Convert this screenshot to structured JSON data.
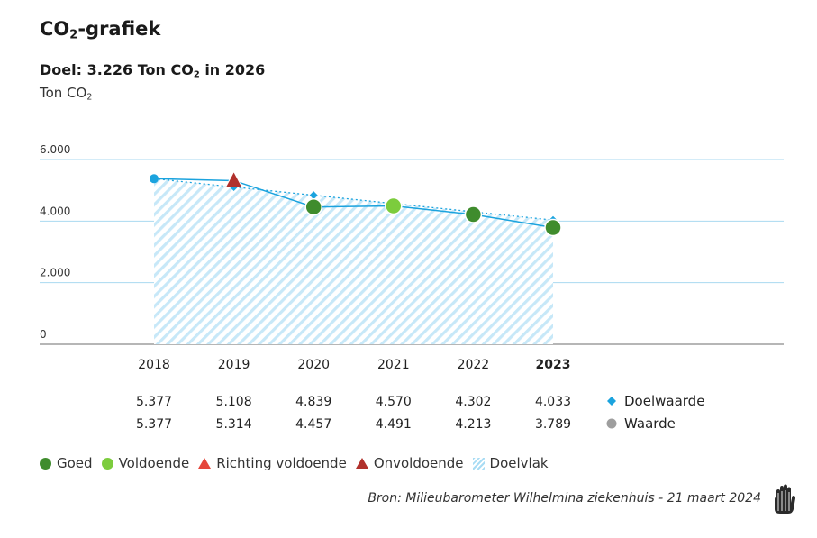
{
  "header": {
    "title_pre": "CO",
    "title_sub": "2",
    "title_post": "-grafiek",
    "goal_pre": "Doel: 3.226 Ton CO",
    "goal_sub": "2",
    "goal_post": " in 2026",
    "unit_pre": "Ton CO",
    "unit_sub": "2"
  },
  "chart_data": {
    "type": "line",
    "categories": [
      "2018",
      "2019",
      "2020",
      "2021",
      "2022",
      "2023"
    ],
    "highlight_category": "2023",
    "ylim": [
      0,
      6000
    ],
    "yticks": [
      0,
      2000,
      4000,
      6000
    ],
    "ytick_labels": [
      "0",
      "2.000",
      "4.000",
      "6.000"
    ],
    "series": [
      {
        "name": "Doelwaarde",
        "values": [
          5377,
          5108,
          4839,
          4570,
          4302,
          4033
        ],
        "labels": [
          "5.377",
          "5.108",
          "4.839",
          "4.570",
          "4.302",
          "4.033"
        ],
        "color": "#1ba3de",
        "style": "dotted",
        "marker": "diamond"
      },
      {
        "name": "Waarde",
        "values": [
          5377,
          5314,
          4457,
          4491,
          4213,
          3789
        ],
        "labels": [
          "5.377",
          "5.314",
          "4.457",
          "4.491",
          "4.213",
          "3.789"
        ],
        "color": "#1ba3de",
        "legend_color": "#9e9e9e",
        "style": "solid",
        "status": [
          null,
          "Onvoldoende",
          "Goed",
          "Voldoende",
          "Goed",
          "Goed"
        ]
      }
    ],
    "area": "Doelvlak",
    "status_colors": {
      "Goed": "#3f8c2d",
      "Voldoende": "#7ccc3d",
      "Richting voldoende": "#e5463b",
      "Onvoldoende": "#b1312c"
    },
    "area_color": "#a9dcf4",
    "first_point_color": "#1ba3de"
  },
  "legend": {
    "items": [
      {
        "label": "Goed",
        "shape": "dot",
        "color": "#3f8c2d"
      },
      {
        "label": "Voldoende",
        "shape": "dot",
        "color": "#7ccc3d"
      },
      {
        "label": "Richting voldoende",
        "shape": "triangle",
        "color": "#e5463b"
      },
      {
        "label": "Onvoldoende",
        "shape": "triangle",
        "color": "#b1312c"
      },
      {
        "label": "Doelvlak",
        "shape": "hatch",
        "color": "#a9dcf4"
      }
    ]
  },
  "source": "Bron: Milieubarometer Wilhelmina ziekenhuis - 21 maart 2024",
  "logo_icon": "hand-icon"
}
